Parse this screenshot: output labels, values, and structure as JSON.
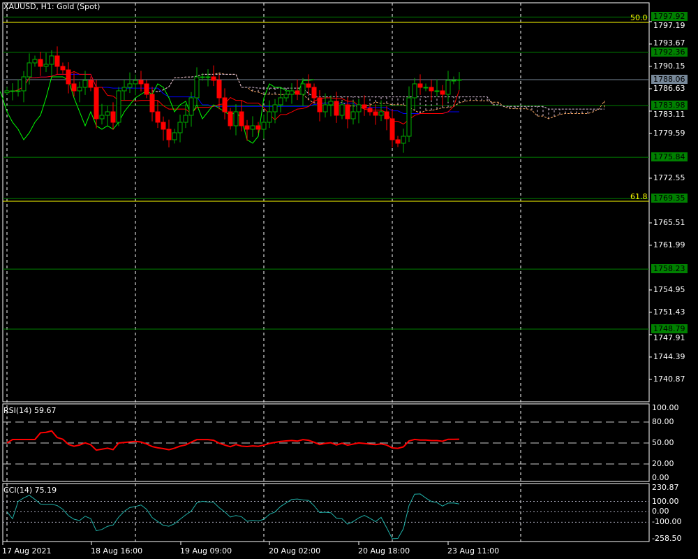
{
  "header": {
    "title": "XAUUSD, H1:  Gold (Spot)"
  },
  "colors": {
    "bull": "#00b000",
    "bear": "#ff0000",
    "level": "#008000",
    "fib": "#ffff00",
    "tenkan": "#ff0000",
    "kijun": "#0000ff",
    "chikou": "#00ff00",
    "spanA": "#f4a460",
    "spanB": "#d8bfd8",
    "rsi": "#ff0000",
    "cci": "#20b2aa",
    "current": "#778899"
  },
  "price_axis": {
    "ticks": [
      "1797.19",
      "1793.67",
      "1790.15",
      "1786.63",
      "1783.11",
      "1779.59",
      "1772.55",
      "1765.51",
      "1761.99",
      "1754.95",
      "1751.43",
      "1747.91",
      "1744.39",
      "1740.87"
    ],
    "tick_values": [
      1797.19,
      1793.67,
      1790.15,
      1786.63,
      1783.11,
      1779.59,
      1772.55,
      1765.51,
      1761.99,
      1754.95,
      1751.43,
      1747.91,
      1744.39,
      1740.87
    ],
    "current_price": "1788.06",
    "levels": [
      "1797.92",
      "1792.36",
      "1783.98",
      "1775.84",
      "1769.35",
      "1758.23",
      "1748.79"
    ],
    "fib": [
      {
        "label": "50.0",
        "value": 1797.19
      },
      {
        "label": "61.8",
        "value": 1769.03
      }
    ]
  },
  "time_axis": [
    "17 Aug 2021",
    "18 Aug 16:00",
    "19 Aug 09:00",
    "20 Aug 02:00",
    "20 Aug 18:00",
    "23 Aug 11:00"
  ],
  "rsi": {
    "label": "RSI(14) 59.67",
    "ticks": [
      "100.00",
      "80.00",
      "50.00",
      "20.00",
      "0.00"
    ]
  },
  "cci": {
    "label": "CCI(14) 75.19",
    "ticks": [
      "230.87",
      "100.00",
      "0.00",
      "-100.00",
      "-258.50"
    ]
  },
  "closes": [
    1786.3,
    1786.3,
    1786.3,
    1788.5,
    1790.7,
    1791.25,
    1790.15,
    1790.48,
    1791.8,
    1790.15,
    1789.6,
    1787.4,
    1786.3,
    1786.85,
    1787.95,
    1786.85,
    1781.9,
    1782.45,
    1783.0,
    1781.35,
    1786.3,
    1786.85,
    1787.4,
    1787.95,
    1787.4,
    1785.75,
    1783.0,
    1781.35,
    1780.25,
    1778.6,
    1779.7,
    1781.35,
    1782.45,
    1785.2,
    1788.5,
    1788.5,
    1788.5,
    1787.95,
    1785.2,
    1783.0,
    1780.8,
    1783.0,
    1780.8,
    1780.25,
    1780.8,
    1780.25,
    1781.35,
    1783.0,
    1784.1,
    1785.2,
    1785.75,
    1786.3,
    1785.75,
    1787.4,
    1786.85,
    1785.2,
    1783.0,
    1784.1,
    1784.65,
    1782.45,
    1784.1,
    1781.9,
    1783.0,
    1784.1,
    1783.55,
    1783.0,
    1782.45,
    1783.0,
    1781.9,
    1778.6,
    1778.05,
    1779.15,
    1785.2,
    1787.4,
    1786.85,
    1786.85,
    1786.3,
    1786.3,
    1785.75,
    1787.95,
    1787.95,
    1788.06
  ]
}
